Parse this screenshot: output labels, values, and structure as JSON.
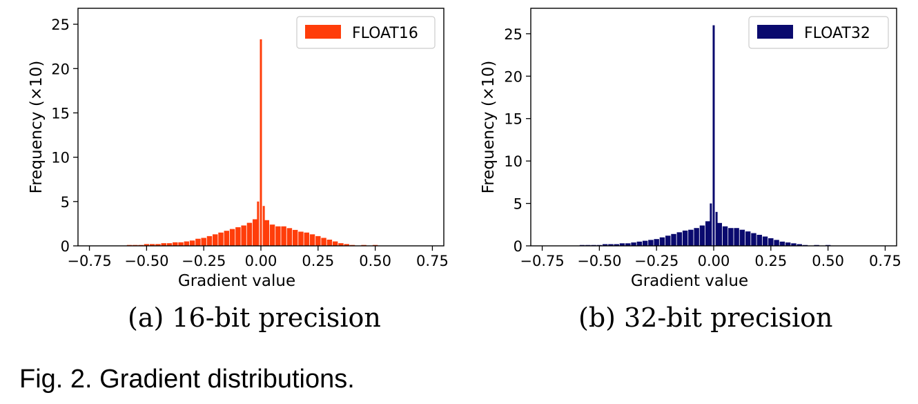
{
  "figure": {
    "caption": "Fig. 2. Gradient distributions."
  },
  "chart_data": [
    {
      "type": "bar",
      "panel": "a",
      "subcaption": "(a) 16-bit precision",
      "xlabel": "Gradient value",
      "ylabel": "Frequency (×10)",
      "xlim": [
        -0.8,
        0.8
      ],
      "ylim": [
        0,
        26.8
      ],
      "xticks": [
        "−0.75",
        "−0.50",
        "−0.25",
        "0.00",
        "0.25",
        "0.50",
        "0.75"
      ],
      "xtick_values": [
        -0.75,
        -0.5,
        -0.25,
        0.0,
        0.25,
        0.5,
        0.75
      ],
      "yticks": [
        "0",
        "5",
        "10",
        "15",
        "20",
        "25"
      ],
      "ytick_values": [
        0,
        5,
        10,
        15,
        20,
        25
      ],
      "legend_position": "top-right",
      "grid": false,
      "series": [
        {
          "name": "FLOAT16",
          "color": "#ff3d0a",
          "bin_width": 0.025,
          "x": [
            -0.575,
            -0.55,
            -0.525,
            -0.5,
            -0.475,
            -0.45,
            -0.425,
            -0.4,
            -0.375,
            -0.35,
            -0.325,
            -0.3,
            -0.275,
            -0.25,
            -0.225,
            -0.2,
            -0.175,
            -0.15,
            -0.125,
            -0.1,
            -0.075,
            -0.05,
            -0.025,
            -0.0125,
            0.0,
            0.0125,
            0.025,
            0.05,
            0.075,
            0.1,
            0.125,
            0.15,
            0.175,
            0.2,
            0.225,
            0.25,
            0.275,
            0.3,
            0.325,
            0.35,
            0.375,
            0.4,
            0.45,
            0.5
          ],
          "values": [
            0.1,
            0.1,
            0.1,
            0.2,
            0.2,
            0.2,
            0.3,
            0.3,
            0.4,
            0.4,
            0.5,
            0.6,
            0.8,
            0.9,
            1.1,
            1.3,
            1.5,
            1.7,
            1.9,
            2.1,
            2.3,
            2.6,
            3.0,
            5.0,
            23.3,
            4.5,
            2.9,
            2.4,
            2.2,
            2.2,
            2.0,
            1.8,
            1.6,
            1.5,
            1.3,
            1.1,
            0.9,
            0.7,
            0.5,
            0.3,
            0.2,
            0.1,
            0.1,
            0.1
          ]
        }
      ]
    },
    {
      "type": "bar",
      "panel": "b",
      "subcaption": "(b) 32-bit precision",
      "xlabel": "Gradient value",
      "ylabel": "Frequency (×10)",
      "xlim": [
        -0.8,
        0.8
      ],
      "ylim": [
        0,
        28.0
      ],
      "xticks": [
        "−0.75",
        "−0.50",
        "−0.25",
        "0.00",
        "0.25",
        "0.50",
        "0.75"
      ],
      "xtick_values": [
        -0.75,
        -0.5,
        -0.25,
        0.0,
        0.25,
        0.5,
        0.75
      ],
      "yticks": [
        "0",
        "5",
        "10",
        "15",
        "20",
        "25"
      ],
      "ytick_values": [
        0,
        5,
        10,
        15,
        20,
        25
      ],
      "legend_position": "top-right",
      "grid": false,
      "series": [
        {
          "name": "FLOAT32",
          "color": "#0a0a6e",
          "bin_width": 0.025,
          "x": [
            -0.575,
            -0.55,
            -0.525,
            -0.5,
            -0.475,
            -0.45,
            -0.425,
            -0.4,
            -0.375,
            -0.35,
            -0.325,
            -0.3,
            -0.275,
            -0.25,
            -0.225,
            -0.2,
            -0.175,
            -0.15,
            -0.125,
            -0.1,
            -0.075,
            -0.05,
            -0.025,
            -0.0125,
            0.0,
            0.0125,
            0.025,
            0.05,
            0.075,
            0.1,
            0.125,
            0.15,
            0.175,
            0.2,
            0.225,
            0.25,
            0.275,
            0.3,
            0.325,
            0.35,
            0.375,
            0.4,
            0.45,
            0.5
          ],
          "values": [
            0.1,
            0.1,
            0.1,
            0.1,
            0.2,
            0.2,
            0.2,
            0.3,
            0.3,
            0.4,
            0.5,
            0.6,
            0.7,
            0.8,
            1.0,
            1.2,
            1.4,
            1.6,
            1.8,
            1.9,
            2.1,
            2.4,
            2.9,
            5.0,
            26.0,
            4.0,
            2.7,
            2.3,
            2.1,
            2.1,
            1.9,
            1.7,
            1.5,
            1.3,
            1.1,
            0.9,
            0.7,
            0.5,
            0.4,
            0.3,
            0.2,
            0.1,
            0.1,
            0.1
          ]
        }
      ]
    }
  ]
}
